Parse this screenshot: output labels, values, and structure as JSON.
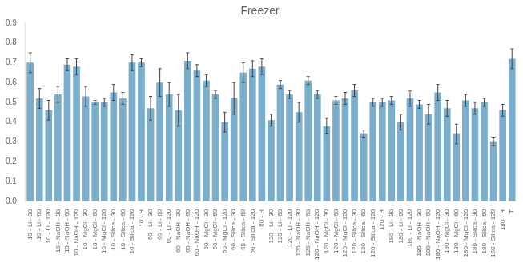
{
  "chart_data": {
    "type": "bar",
    "title": "Freezer",
    "categories": [
      "10 - Li - 30",
      "10 - Li - 60",
      "10 - Li - 120",
      "10 - NaOH - 30",
      "10 - NaOH - 60",
      "10 - NaOH - 120",
      "10 - MgCl - 30",
      "10 - MgCl - 60",
      "10 - MgCl - 120",
      "10 - Silica - 30",
      "10 - Silica - 60",
      "10 - Silica - 120",
      "10 - H",
      "60 - Li - 30",
      "60 - Li - 60",
      "60 - Li - 120",
      "60 - NaOH - 30",
      "60 - NaOH - 60",
      "60 - NaOH - 120",
      "60 - MgCl - 30",
      "60 - MgCl - 60",
      "60 - MgCl - 120",
      "60 - Silica - 30",
      "60 - Silica - 60",
      "60 - Silica - 120",
      "60 - H",
      "120 - Li - 30",
      "120 - Li - 60",
      "120 - Li - 120",
      "120 - NaOH - 30",
      "120 - NaOH - 60",
      "120 - NaOH - 120",
      "120 - MgCl - 30",
      "120 - MgCl - 60",
      "120 - MgCl - 120",
      "120 - Silica - 30",
      "120 - Silica - 60",
      "120 - Silica - 120",
      "120 - H",
      "180 - Li - 30",
      "180 - Li - 60",
      "180 - Li - 120",
      "180 - NaOH - 30",
      "180 - NaOH - 60",
      "180 - NaOH - 120",
      "180 - MgCl - 30",
      "180 - MgCl - 60",
      "180 - MgCl - 120",
      "180 - Silica - 30",
      "180 - Silica - 60",
      "180 - Silica - 120",
      "180 - H",
      "T"
    ],
    "values": [
      0.7,
      0.52,
      0.46,
      0.54,
      0.69,
      0.68,
      0.53,
      0.5,
      0.5,
      0.55,
      0.52,
      0.7,
      0.7,
      0.47,
      0.6,
      0.54,
      0.46,
      0.71,
      0.66,
      0.61,
      0.54,
      0.4,
      0.52,
      0.65,
      0.67,
      0.68,
      0.41,
      0.59,
      0.54,
      0.45,
      0.61,
      0.54,
      0.38,
      0.51,
      0.52,
      0.56,
      0.34,
      0.5,
      0.5,
      0.51,
      0.4,
      0.52,
      0.49,
      0.44,
      0.55,
      0.47,
      0.34,
      0.51,
      0.47,
      0.5,
      0.3,
      0.46,
      0.72
    ],
    "errors": [
      0.05,
      0.05,
      0.05,
      0.04,
      0.03,
      0.04,
      0.05,
      0.01,
      0.02,
      0.04,
      0.03,
      0.04,
      0.02,
      0.06,
      0.07,
      0.06,
      0.08,
      0.04,
      0.03,
      0.03,
      0.02,
      0.05,
      0.08,
      0.05,
      0.04,
      0.04,
      0.03,
      0.02,
      0.02,
      0.05,
      0.02,
      0.02,
      0.04,
      0.02,
      0.03,
      0.03,
      0.02,
      0.02,
      0.02,
      0.02,
      0.04,
      0.04,
      0.02,
      0.05,
      0.04,
      0.04,
      0.05,
      0.03,
      0.03,
      0.02,
      0.02,
      0.03,
      0.05
    ],
    "color": "#7aaecc",
    "ylim": [
      0,
      0.9
    ],
    "yticks": [
      {
        "value": 0,
        "label": "0.0"
      },
      0.1,
      0.2,
      0.3,
      0.4,
      0.5,
      0.6,
      0.7,
      0.8,
      0.9
    ],
    "grid": false
  }
}
